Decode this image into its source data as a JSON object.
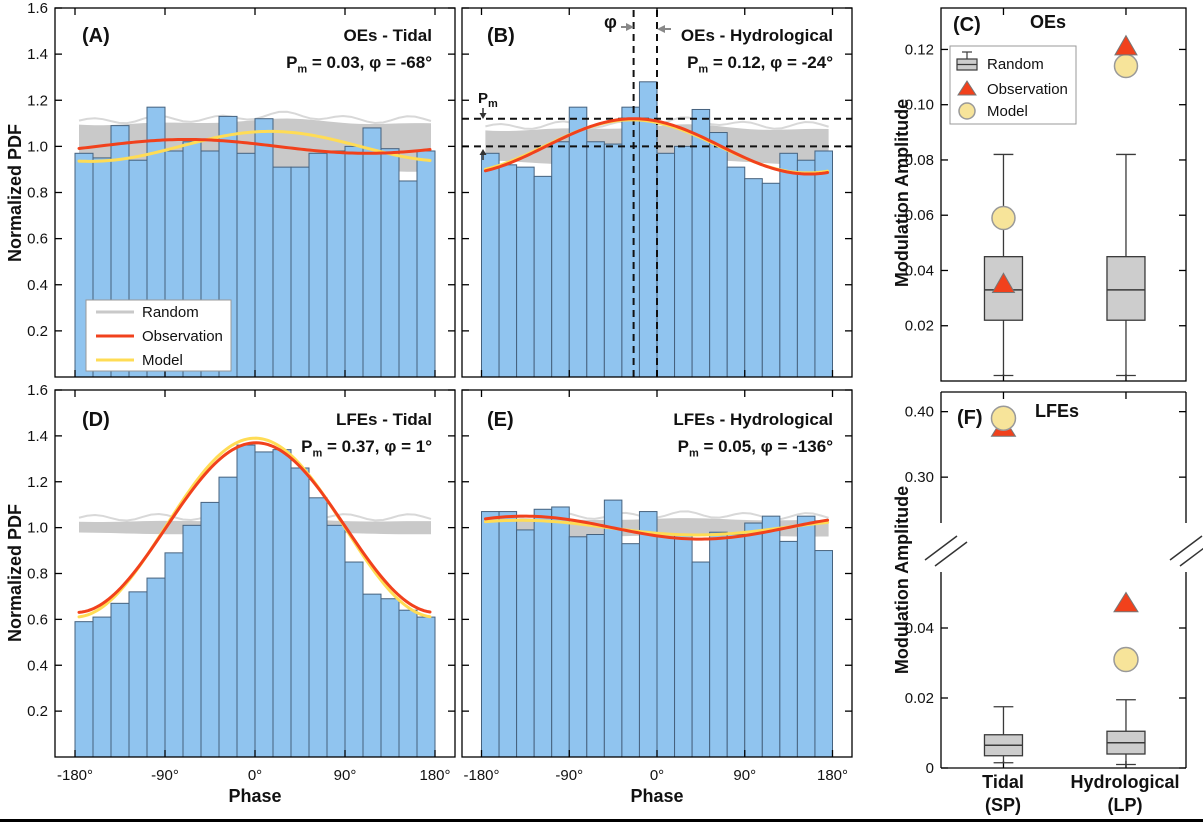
{
  "colors": {
    "bar_fill": "#90C4EF",
    "bar_edge": "#46627E",
    "random_band": "#C9C9C9",
    "random_strand": "#D8D8D8",
    "observation": "#F1411C",
    "model": "#FFDC55",
    "box_fill": "#CDCDCD",
    "box_edge": "#3A3A3A",
    "triangle_fill": "#F1411C",
    "triangle_edge": "#777777",
    "circle_fill": "#F7E49A",
    "circle_edge": "#999999",
    "axis": "#000000",
    "dashed": "#111111",
    "arrow_gray": "#888888",
    "legend_border": "#999999"
  },
  "chart_data": [
    {
      "id": "A",
      "type": "histogram",
      "panel_label": "(A)",
      "title": "OEs - Tidal",
      "stat_p": "P",
      "stat_sub": "m",
      "stat_rest": " = 0.03, φ = -68°",
      "ylabel": "Normalized PDF",
      "xlabel": "",
      "xlim": [
        -200,
        200
      ],
      "ylim": [
        0,
        1.6
      ],
      "yticks": [
        0.2,
        0.4,
        0.6,
        0.8,
        1.0,
        1.2,
        1.4,
        1.6
      ],
      "xticks": [
        -180,
        -90,
        0,
        90,
        180
      ],
      "xtick_suffix": "°",
      "bin_start": -180,
      "bin_width": 18,
      "bar_values": [
        0.97,
        0.95,
        1.09,
        0.94,
        1.17,
        0.98,
        1.02,
        0.98,
        1.13,
        0.97,
        1.12,
        0.91,
        0.91,
        0.97,
        0.98,
        1.0,
        1.08,
        0.99,
        0.85,
        0.98
      ],
      "random_band": [
        0.9,
        1.105
      ],
      "curves": {
        "observation": {
          "pm": 0.03,
          "phi_deg": -68
        },
        "model": {
          "pm": 0.065,
          "phi_deg": 15
        }
      },
      "legend": [
        "Random",
        "Observation",
        "Model"
      ]
    },
    {
      "id": "B",
      "type": "histogram",
      "panel_label": "(B)",
      "title": "OEs - Hydrological",
      "stat_p": "P",
      "stat_sub": "m",
      "stat_rest": " = 0.12, φ = -24°",
      "ylabel": "",
      "xlabel": "",
      "xlim": [
        -200,
        200
      ],
      "ylim": [
        0,
        1.6
      ],
      "yticks": [
        0.2,
        0.4,
        0.6,
        0.8,
        1.0,
        1.2,
        1.4,
        1.6
      ],
      "xticks": [
        -180,
        -90,
        0,
        90,
        180
      ],
      "xtick_suffix": "°",
      "bin_start": -180,
      "bin_width": 18,
      "bar_values": [
        0.97,
        0.92,
        0.91,
        0.87,
        1.02,
        1.17,
        1.02,
        1.01,
        1.17,
        1.28,
        0.97,
        1.0,
        1.16,
        1.06,
        0.91,
        0.86,
        0.84,
        0.97,
        0.94,
        0.98
      ],
      "random_band": [
        0.93,
        1.08
      ],
      "curves": {
        "observation": {
          "pm": 0.12,
          "phi_deg": -24
        },
        "model": {
          "pm": 0.115,
          "phi_deg": -26
        }
      },
      "dashed_vlines": [
        -24,
        0
      ],
      "dashed_hlines": [
        1.12,
        1.0
      ],
      "anno_phi": "φ",
      "anno_p": "P",
      "anno_p_sub": "m"
    },
    {
      "id": "C",
      "type": "boxplot",
      "panel_label": "(C)",
      "title": "OEs",
      "ylabel": "Modulation Amplitude",
      "ylim": [
        0,
        0.135
      ],
      "yticks": [
        0.02,
        0.04,
        0.06,
        0.08,
        0.1,
        0.12
      ],
      "legend": [
        "Random",
        "Observation",
        "Model"
      ],
      "groups": [
        {
          "name": "Tidal",
          "q1": 0.022,
          "median": 0.033,
          "q3": 0.045,
          "whisker_low": 0.002,
          "whisker_high": 0.082,
          "observation": 0.035,
          "model": 0.059
        },
        {
          "name": "Hydrological",
          "q1": 0.022,
          "median": 0.033,
          "q3": 0.045,
          "whisker_low": 0.002,
          "whisker_high": 0.082,
          "observation": 0.121,
          "model": 0.114
        }
      ]
    },
    {
      "id": "D",
      "type": "histogram",
      "panel_label": "(D)",
      "title": "LFEs - Tidal",
      "stat_p": "P",
      "stat_sub": "m",
      "stat_rest": " = 0.37, φ = 1°",
      "ylabel": "Normalized PDF",
      "xlabel": "Phase",
      "xlim": [
        -200,
        200
      ],
      "ylim": [
        0,
        1.6
      ],
      "yticks": [
        0.2,
        0.4,
        0.6,
        0.8,
        1.0,
        1.2,
        1.4,
        1.6
      ],
      "xticks": [
        -180,
        -90,
        0,
        90,
        180
      ],
      "xtick_suffix": "°",
      "bin_start": -180,
      "bin_width": 18,
      "bar_values": [
        0.59,
        0.61,
        0.67,
        0.72,
        0.78,
        0.89,
        1.01,
        1.11,
        1.22,
        1.36,
        1.33,
        1.34,
        1.26,
        1.13,
        1.01,
        0.85,
        0.71,
        0.69,
        0.64,
        0.61
      ],
      "random_band": [
        0.975,
        1.03
      ],
      "curves": {
        "observation": {
          "pm": 0.37,
          "phi_deg": 1
        },
        "model": {
          "pm": 0.39,
          "phi_deg": 0
        }
      }
    },
    {
      "id": "E",
      "type": "histogram",
      "panel_label": "(E)",
      "title": "LFEs - Hydrological",
      "stat_p": "P",
      "stat_sub": "m",
      "stat_rest": " = 0.05, φ = -136°",
      "ylabel": "",
      "xlabel": "Phase",
      "xlim": [
        -200,
        200
      ],
      "ylim": [
        0,
        1.6
      ],
      "yticks": [
        0.2,
        0.4,
        0.6,
        0.8,
        1.0,
        1.2,
        1.4,
        1.6
      ],
      "xticks": [
        -180,
        -90,
        0,
        90,
        180
      ],
      "xtick_suffix": "°",
      "bin_start": -180,
      "bin_width": 18,
      "bar_values": [
        1.07,
        1.07,
        0.99,
        1.08,
        1.09,
        0.96,
        0.97,
        1.12,
        0.93,
        1.07,
        0.97,
        0.97,
        0.85,
        0.98,
        0.97,
        1.02,
        1.05,
        0.94,
        1.05,
        0.9
      ],
      "random_band": [
        0.965,
        1.035
      ],
      "curves": {
        "observation": {
          "pm": 0.05,
          "phi_deg": -136
        },
        "model": {
          "pm": 0.032,
          "phi_deg": -140
        }
      }
    },
    {
      "id": "F",
      "type": "boxplot_broken",
      "panel_label": "(F)",
      "title": "LFEs",
      "ylabel": "Modulation Amplitude",
      "segments": {
        "top": {
          "ylim": [
            0.23,
            0.43
          ],
          "yticks": [
            0.3,
            0.4
          ]
        },
        "bottom": {
          "ylim": [
            0,
            0.056
          ],
          "yticks": [
            0,
            0.02,
            0.04
          ]
        }
      },
      "groups": [
        {
          "name": "Tidal",
          "name2": "(SP)",
          "q1": 0.0035,
          "median": 0.0065,
          "q3": 0.0095,
          "whisker_low": 0.0015,
          "whisker_high": 0.0175,
          "observation": 0.375,
          "model": 0.39
        },
        {
          "name": "Hydrological",
          "name2": "(LP)",
          "q1": 0.004,
          "median": 0.0072,
          "q3": 0.0105,
          "whisker_low": 0.001,
          "whisker_high": 0.0195,
          "observation": 0.047,
          "model": 0.031
        }
      ]
    }
  ]
}
